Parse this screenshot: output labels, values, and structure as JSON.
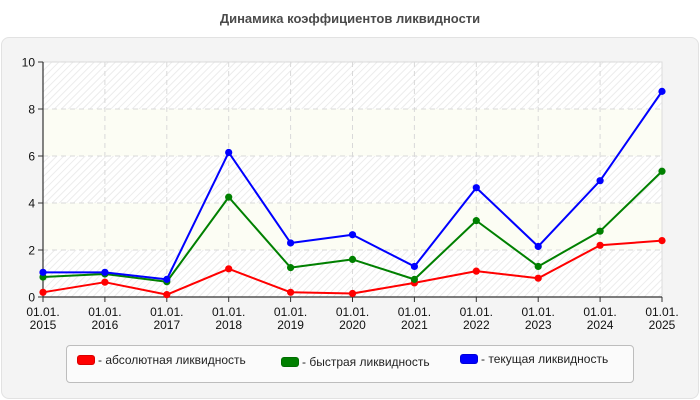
{
  "title": "Динамика коэффициентов ликвидности",
  "colors": {
    "absolute": "#ff0000",
    "quick": "#008000",
    "current": "#0000ff",
    "panel": "#f4f4f4",
    "band": "#fcfdf4"
  },
  "legend": {
    "items": [
      {
        "label": "- абсолютная ликвидность",
        "color": "#ff0000"
      },
      {
        "label": "- быстрая ликвидность",
        "color": "#008000"
      },
      {
        "label": "- текущая ликвидность",
        "color": "#0000ff"
      }
    ]
  },
  "chart_data": {
    "type": "line",
    "title": "Динамика коэффициентов ликвидности",
    "xlabel": "",
    "ylabel": "",
    "categories": [
      "01.01.2015",
      "01.01.2016",
      "01.01.2017",
      "01.01.2018",
      "01.01.2019",
      "01.01.2020",
      "01.01.2021",
      "01.01.2022",
      "01.01.2023",
      "01.01.2024",
      "01.01.2025"
    ],
    "x_tick_labels": [
      [
        "01.01.",
        "2015"
      ],
      [
        "01.01.",
        "2016"
      ],
      [
        "01.01.",
        "2017"
      ],
      [
        "01.01.",
        "2018"
      ],
      [
        "01.01.",
        "2019"
      ],
      [
        "01.01.",
        "2020"
      ],
      [
        "01.01.",
        "2021"
      ],
      [
        "01.01.",
        "2022"
      ],
      [
        "01.01.",
        "2023"
      ],
      [
        "01.01.",
        "2024"
      ],
      [
        "01.01.",
        "2025"
      ]
    ],
    "y_ticks": [
      0,
      2,
      4,
      6,
      8,
      10
    ],
    "ylim": [
      0,
      10
    ],
    "grid": true,
    "legend_position": "bottom",
    "series": [
      {
        "name": "абсолютная ликвидность",
        "color": "#ff0000",
        "values": [
          0.2,
          0.63,
          0.1,
          1.2,
          0.2,
          0.15,
          0.6,
          1.1,
          0.8,
          2.2,
          2.4
        ]
      },
      {
        "name": "быстрая ликвидность",
        "color": "#008000",
        "values": [
          0.85,
          0.98,
          0.65,
          4.25,
          1.25,
          1.6,
          0.75,
          3.25,
          1.3,
          2.8,
          5.35
        ]
      },
      {
        "name": "текущая ликвидность",
        "color": "#0000ff",
        "values": [
          1.05,
          1.05,
          0.75,
          6.15,
          2.3,
          2.65,
          1.3,
          4.65,
          2.15,
          4.95,
          8.75
        ]
      }
    ]
  }
}
